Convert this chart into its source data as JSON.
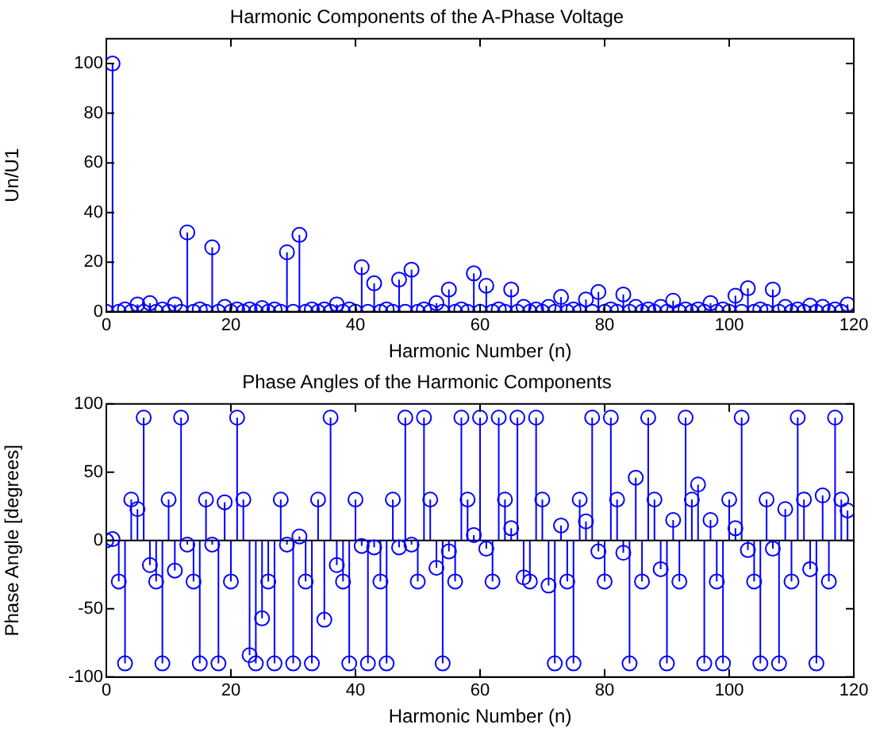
{
  "chart_data": [
    {
      "type": "lollipop",
      "title": "Harmonic Components of the A-Phase Voltage",
      "xlabel": "Harmonic Number (n)",
      "ylabel": "Un/U1",
      "color": "#0000ff",
      "marker": "circle",
      "x": [
        0,
        1,
        2,
        3,
        4,
        5,
        6,
        7,
        8,
        9,
        10,
        11,
        12,
        13,
        14,
        15,
        16,
        17,
        18,
        19,
        20,
        21,
        22,
        23,
        24,
        25,
        26,
        27,
        28,
        29,
        30,
        31,
        32,
        33,
        34,
        35,
        36,
        37,
        38,
        39,
        40,
        41,
        42,
        43,
        44,
        45,
        46,
        47,
        48,
        49,
        50,
        51,
        52,
        53,
        54,
        55,
        56,
        57,
        58,
        59,
        60,
        61,
        62,
        63,
        64,
        65,
        66,
        67,
        68,
        69,
        70,
        71,
        72,
        73,
        74,
        75,
        76,
        77,
        78,
        79,
        80,
        81,
        82,
        83,
        84,
        85,
        86,
        87,
        88,
        89,
        90,
        91,
        92,
        93,
        94,
        95,
        96,
        97,
        98,
        99,
        100,
        101,
        102,
        103,
        104,
        105,
        106,
        107,
        108,
        109,
        110,
        111,
        112,
        113,
        114,
        115,
        116,
        117,
        118,
        119
      ],
      "values": [
        0,
        100,
        0,
        1,
        0,
        3,
        0,
        3.5,
        0,
        1,
        0,
        3,
        0,
        32,
        0,
        1,
        0,
        26,
        0,
        2,
        0,
        1,
        0,
        1,
        0,
        1.5,
        0,
        1,
        0,
        24,
        0,
        31,
        0,
        1,
        0,
        1,
        0,
        3,
        0,
        1,
        0,
        18,
        0,
        11.5,
        0,
        1,
        0,
        13,
        0,
        17,
        0,
        1,
        0,
        3.5,
        0,
        9,
        0,
        1,
        0,
        15.5,
        0,
        10.5,
        0,
        1,
        0,
        9,
        0,
        2,
        0,
        1,
        0,
        2,
        0,
        6,
        0,
        1,
        0,
        5,
        0,
        8,
        0,
        1,
        0,
        7,
        0,
        2,
        0,
        1,
        0,
        2,
        0,
        4.5,
        0,
        1,
        0,
        1,
        0,
        3.5,
        0,
        1,
        0,
        6.5,
        0,
        9.5,
        0,
        1,
        0,
        9,
        0,
        2,
        0,
        1,
        0,
        2.5,
        0,
        2,
        0,
        1,
        0,
        3
      ],
      "xlim": [
        0,
        120
      ],
      "xticks": [
        0,
        20,
        40,
        60,
        80,
        100,
        120
      ],
      "ylim": [
        0,
        110
      ],
      "yticks": [
        0,
        20,
        40,
        60,
        80,
        100
      ]
    },
    {
      "type": "lollipop",
      "title": "Phase Angles of the Harmonic Components",
      "xlabel": "Harmonic Number (n)",
      "ylabel": "Phase Angle [degrees]",
      "color": "#0000ff",
      "marker": "circle",
      "x": [
        0,
        1,
        2,
        3,
        4,
        5,
        6,
        7,
        8,
        9,
        10,
        11,
        12,
        13,
        14,
        15,
        16,
        17,
        18,
        19,
        20,
        21,
        22,
        23,
        24,
        25,
        26,
        27,
        28,
        29,
        30,
        31,
        32,
        33,
        34,
        35,
        36,
        37,
        38,
        39,
        40,
        41,
        42,
        43,
        44,
        45,
        46,
        47,
        48,
        49,
        50,
        51,
        52,
        53,
        54,
        55,
        56,
        57,
        58,
        59,
        60,
        61,
        62,
        63,
        64,
        65,
        66,
        67,
        68,
        69,
        70,
        71,
        72,
        73,
        74,
        75,
        76,
        77,
        78,
        79,
        80,
        81,
        82,
        83,
        84,
        85,
        86,
        87,
        88,
        89,
        90,
        91,
        92,
        93,
        94,
        95,
        96,
        97,
        98,
        99,
        100,
        101,
        102,
        103,
        104,
        105,
        106,
        107,
        108,
        109,
        110,
        111,
        112,
        113,
        114,
        115,
        116,
        117,
        118,
        119
      ],
      "values": [
        0,
        1,
        -30,
        -90,
        30,
        23,
        90,
        -18,
        -30,
        -90,
        30,
        -22,
        90,
        -3,
        -30,
        -90,
        30,
        -3,
        -90,
        28,
        -30,
        90,
        30,
        -84,
        -90,
        -57,
        -30,
        -90,
        30,
        -3,
        -90,
        3,
        -30,
        -90,
        30,
        -58,
        90,
        -18,
        -30,
        -90,
        30,
        -4,
        -90,
        -5,
        -30,
        -90,
        30,
        -5,
        90,
        -3,
        -30,
        90,
        30,
        -20,
        -90,
        -8,
        -30,
        90,
        30,
        4,
        90,
        -6,
        -30,
        90,
        30,
        9,
        90,
        -27,
        -30,
        90,
        30,
        -33,
        -90,
        11,
        -30,
        -90,
        30,
        14,
        90,
        -8,
        -30,
        90,
        30,
        -9,
        -90,
        46,
        -30,
        90,
        30,
        -21,
        -90,
        15,
        -30,
        90,
        30,
        41,
        -90,
        15,
        -30,
        -90,
        30,
        9,
        90,
        -7,
        -30,
        -90,
        30,
        -6,
        -90,
        23,
        -30,
        90,
        30,
        -21,
        -90,
        33,
        -30,
        90,
        30,
        22
      ],
      "xlim": [
        0,
        120
      ],
      "xticks": [
        0,
        20,
        40,
        60,
        80,
        100,
        120
      ],
      "ylim": [
        -100,
        100
      ],
      "yticks": [
        -100,
        -50,
        0,
        50,
        100
      ]
    }
  ]
}
